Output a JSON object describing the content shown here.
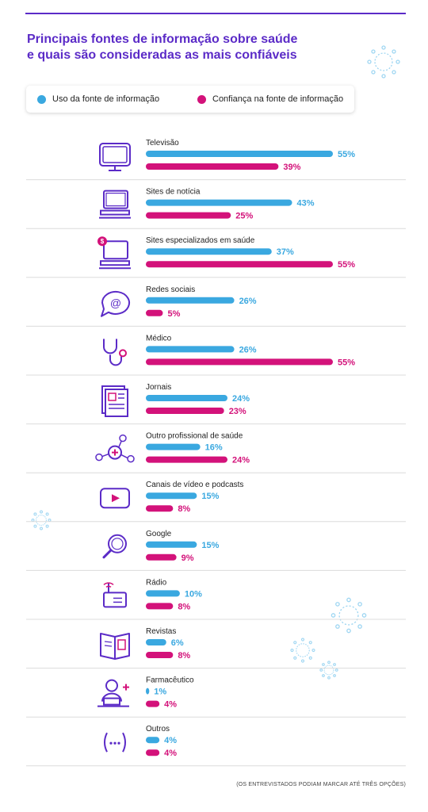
{
  "title_lines": [
    "Principais fontes de informação sobre saúde",
    "e quais são consideradas as mais confiáveis"
  ],
  "legend": {
    "uso": "Uso da fonte de informação",
    "confianca": "Confiança na fonte de informação"
  },
  "colors": {
    "uso": "#3aa8e0",
    "confianca": "#d3127a",
    "accent": "#5b2bc7",
    "icon": "#5b2bc7"
  },
  "note": "(OS ENTREVISTADOS PODIAM MARCAR ATÉ TRÊS OPÇÕES)",
  "chart_data": {
    "type": "bar",
    "orientation": "horizontal",
    "categories": [
      "Televisão",
      "Sites de notícia",
      "Sites especializados em saúde",
      "Redes sociais",
      "Médico",
      "Jornais",
      "Outro profissional de saúde",
      "Canais de vídeo e podcasts",
      "Google",
      "Rádio",
      "Revistas",
      "Farmacêutico",
      "Outros"
    ],
    "icons": [
      "tv-icon",
      "computer-icon",
      "specialized-site-icon",
      "chat-at-icon",
      "stethoscope-icon",
      "newspaper-icon",
      "health-network-icon",
      "video-play-icon",
      "magnifier-icon",
      "radio-icon",
      "magazine-icon",
      "pharmacist-icon",
      "ellipsis-icon"
    ],
    "series": [
      {
        "key": "uso",
        "values": [
          55,
          43,
          37,
          26,
          26,
          24,
          16,
          15,
          15,
          10,
          6,
          1,
          4
        ]
      },
      {
        "key": "confianca",
        "values": [
          39,
          25,
          55,
          5,
          55,
          23,
          24,
          8,
          9,
          8,
          8,
          4,
          4
        ]
      }
    ],
    "value_suffix": "%",
    "legend_position": "top",
    "grid": false
  }
}
